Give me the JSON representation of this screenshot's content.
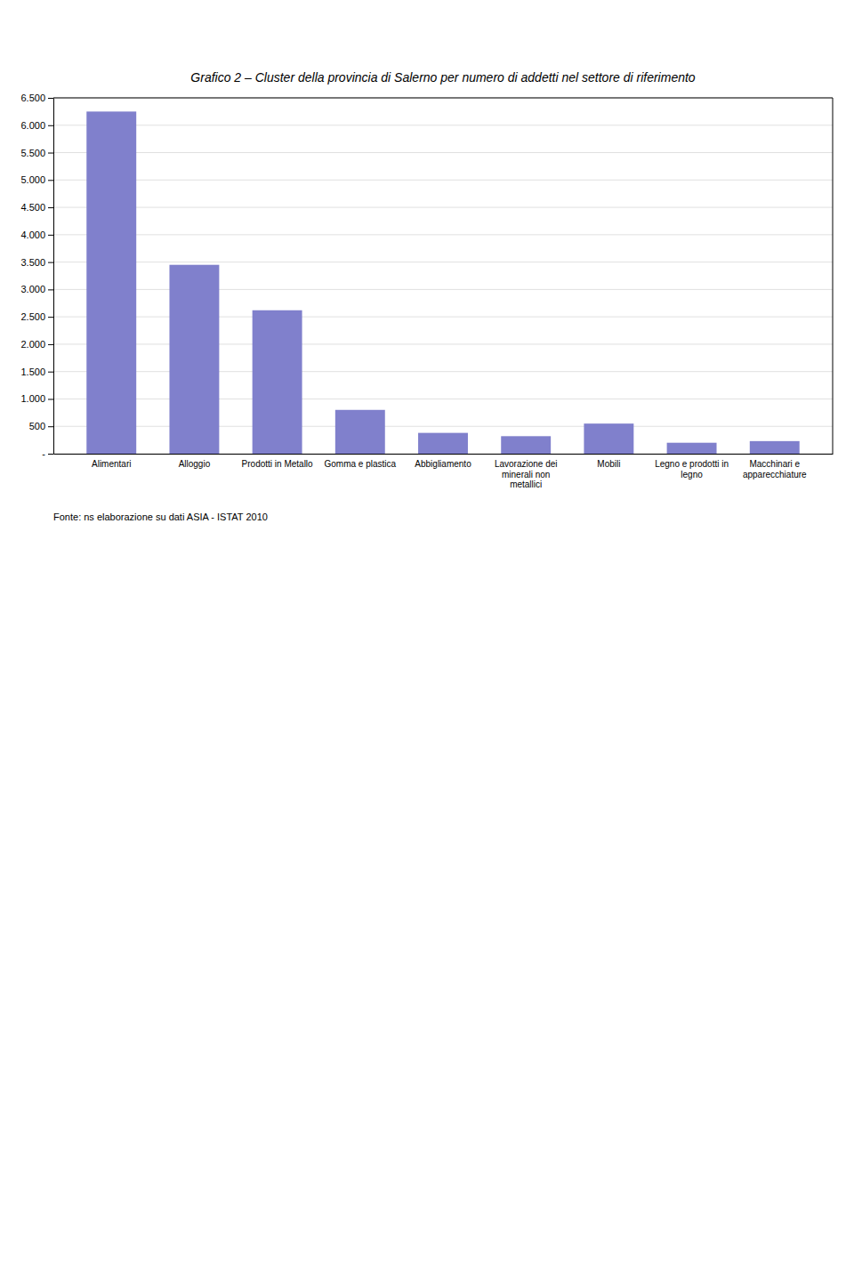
{
  "chart_data": {
    "type": "bar",
    "title": "Grafico 2 – Cluster della provincia di Salerno per numero di addetti nel settore di riferimento",
    "categories": [
      "Alimentari",
      "Alloggio",
      "Prodotti in Metallo",
      "Gomma e plastica",
      "Abbigliamento",
      "Lavorazione dei\nminerali non\nmetallici",
      "Mobili",
      "Legno e prodotti in\nlegno",
      "Macchinari e\napparecchiature"
    ],
    "values": [
      6250,
      3450,
      2620,
      800,
      380,
      320,
      550,
      200,
      230
    ],
    "color": "#8080cc",
    "ylim": [
      0,
      6500
    ],
    "yticks": [
      {
        "value": 0,
        "label": "-"
      },
      500,
      {
        "value": 1000,
        "label": "1.000"
      },
      {
        "value": 1500,
        "label": "1.500"
      },
      {
        "value": 2000,
        "label": "2.000"
      },
      {
        "value": 2500,
        "label": "2.500"
      },
      {
        "value": 3000,
        "label": "3.000"
      },
      {
        "value": 3500,
        "label": "3.500"
      },
      {
        "value": 4000,
        "label": "4.000"
      },
      {
        "value": 4500,
        "label": "4.500"
      },
      {
        "value": 5000,
        "label": "5.000"
      },
      {
        "value": 5500,
        "label": "5.500"
      },
      {
        "value": 6000,
        "label": "6.000"
      },
      {
        "value": 6500,
        "label": "6.500"
      }
    ],
    "grid": true,
    "source": "Fonte: ns elaborazione su dati ASIA - ISTAT 2010"
  }
}
